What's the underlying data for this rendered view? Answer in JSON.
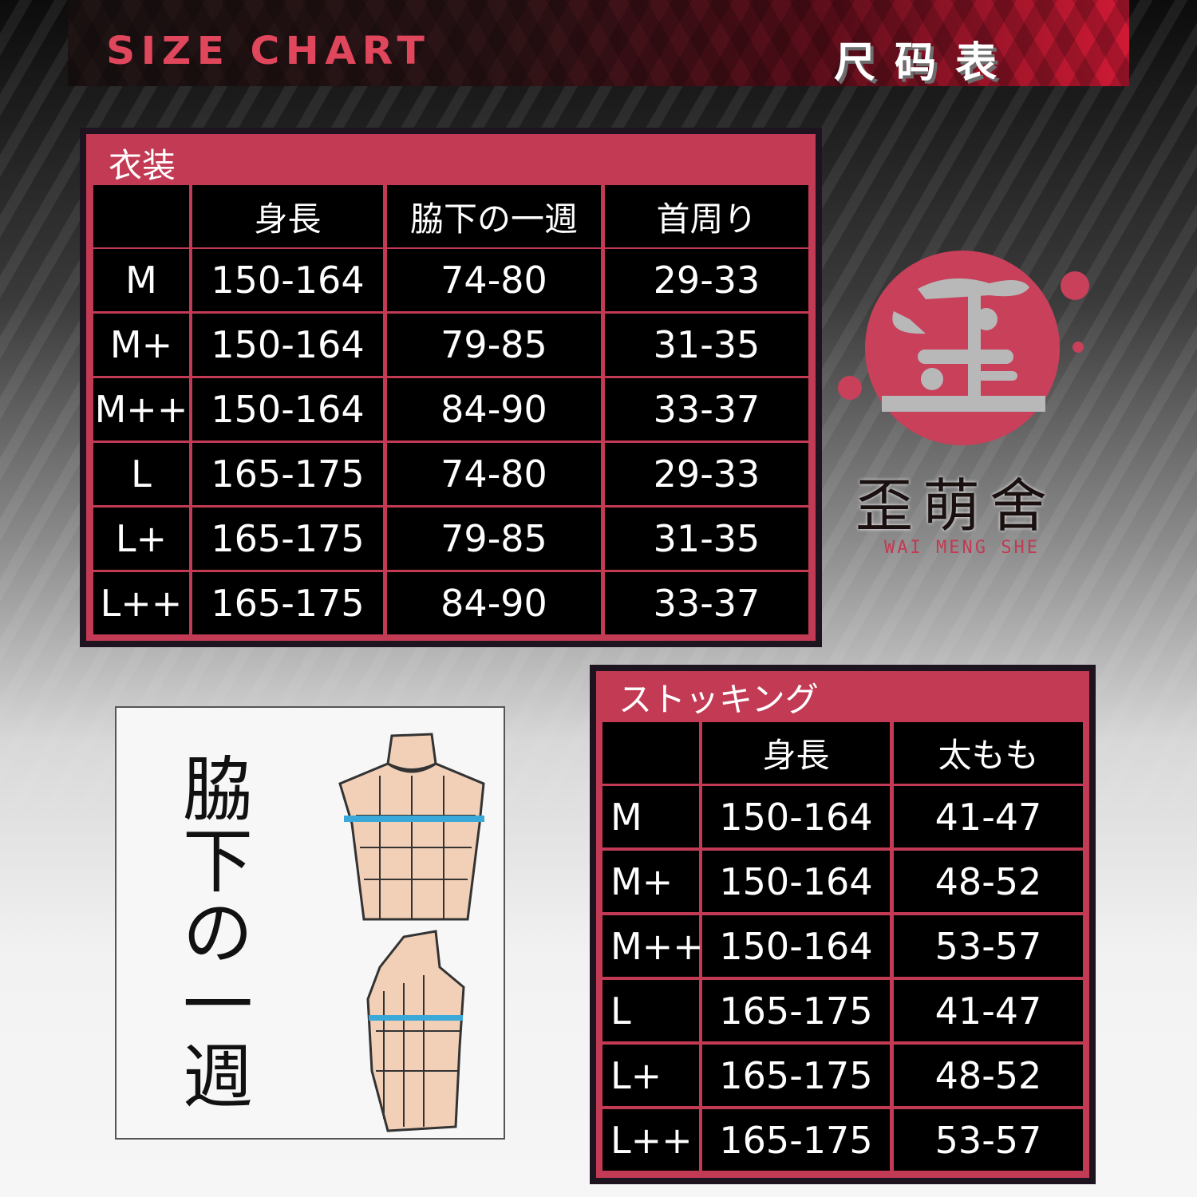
{
  "header": {
    "title_en": "SIZE CHART",
    "title_cn": "尺码表"
  },
  "brand": {
    "logo_glyph": "歪",
    "name_cn": "歪萌舍",
    "name_en": "WAI MENG SHE",
    "color": "#c23a53"
  },
  "costume_table": {
    "title": "衣装",
    "headers": [
      "",
      "身長",
      "脇下の一週",
      "首周り"
    ],
    "rows": [
      [
        "M",
        "150-164",
        "74-80",
        "29-33"
      ],
      [
        "M+",
        "150-164",
        "79-85",
        "31-35"
      ],
      [
        "M++",
        "150-164",
        "84-90",
        "33-37"
      ],
      [
        "L",
        "165-175",
        "74-80",
        "29-33"
      ],
      [
        "L+",
        "165-175",
        "79-85",
        "31-35"
      ],
      [
        "L++",
        "165-175",
        "84-90",
        "33-37"
      ]
    ]
  },
  "stocking_table": {
    "title": "ストッキング",
    "headers": [
      "",
      "身長",
      "太もも"
    ],
    "rows": [
      [
        "M",
        "150-164",
        "41-47"
      ],
      [
        "M+",
        "150-164",
        "48-52"
      ],
      [
        "M++",
        "150-164",
        "53-57"
      ],
      [
        "L",
        "165-175",
        "41-47"
      ],
      [
        "L+",
        "165-175",
        "48-52"
      ],
      [
        "L++",
        "165-175",
        "53-57"
      ]
    ]
  },
  "diagram": {
    "label": "脇下の一週",
    "measure_color": "#3aa8d8",
    "body_color": "#f2d0b8"
  },
  "colors": {
    "accent": "#c23a53",
    "cell_bg": "#000000"
  }
}
